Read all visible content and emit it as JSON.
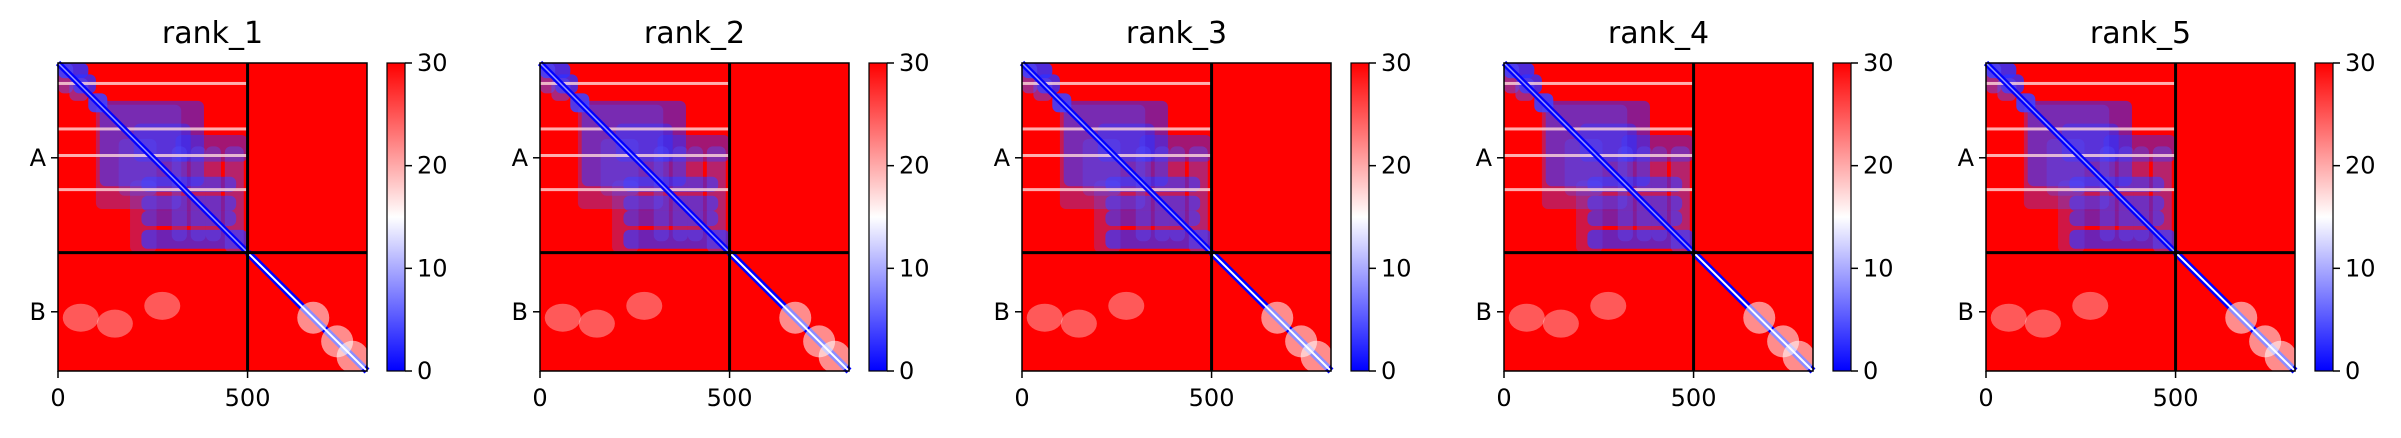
{
  "chart_data": [
    {
      "type": "heatmap",
      "title": "rank_1",
      "chains": [
        "A",
        "B"
      ],
      "chain_boundary": 500,
      "x_ticks": [
        "0",
        "500"
      ],
      "colorbar": {
        "ticks": [
          "0",
          "10",
          "20",
          "30"
        ],
        "range": [
          0,
          30
        ],
        "colors": [
          "#0000ff",
          "#ffffff",
          "#ff0000"
        ]
      }
    },
    {
      "type": "heatmap",
      "title": "rank_2",
      "chains": [
        "A",
        "B"
      ],
      "chain_boundary": 500,
      "x_ticks": [
        "0",
        "500"
      ],
      "colorbar": {
        "ticks": [
          "0",
          "10",
          "20",
          "30"
        ],
        "range": [
          0,
          30
        ],
        "colors": [
          "#0000ff",
          "#ffffff",
          "#ff0000"
        ]
      }
    },
    {
      "type": "heatmap",
      "title": "rank_3",
      "chains": [
        "A",
        "B"
      ],
      "chain_boundary": 500,
      "x_ticks": [
        "0",
        "500"
      ],
      "colorbar": {
        "ticks": [
          "0",
          "10",
          "20",
          "30"
        ],
        "range": [
          0,
          30
        ],
        "colors": [
          "#0000ff",
          "#ffffff",
          "#ff0000"
        ]
      }
    },
    {
      "type": "heatmap",
      "title": "rank_4",
      "chains": [
        "A",
        "B"
      ],
      "chain_boundary": 500,
      "x_ticks": [
        "0",
        "500"
      ],
      "colorbar": {
        "ticks": [
          "0",
          "10",
          "20",
          "30"
        ],
        "range": [
          0,
          30
        ],
        "colors": [
          "#0000ff",
          "#ffffff",
          "#ff0000"
        ]
      }
    },
    {
      "type": "heatmap",
      "title": "rank_5",
      "chains": [
        "A",
        "B"
      ],
      "chain_boundary": 500,
      "x_ticks": [
        "0",
        "500"
      ],
      "colorbar": {
        "ticks": [
          "0",
          "10",
          "20",
          "30"
        ],
        "range": [
          0,
          30
        ],
        "colors": [
          "#0000ff",
          "#ffffff",
          "#ff0000"
        ]
      }
    }
  ]
}
